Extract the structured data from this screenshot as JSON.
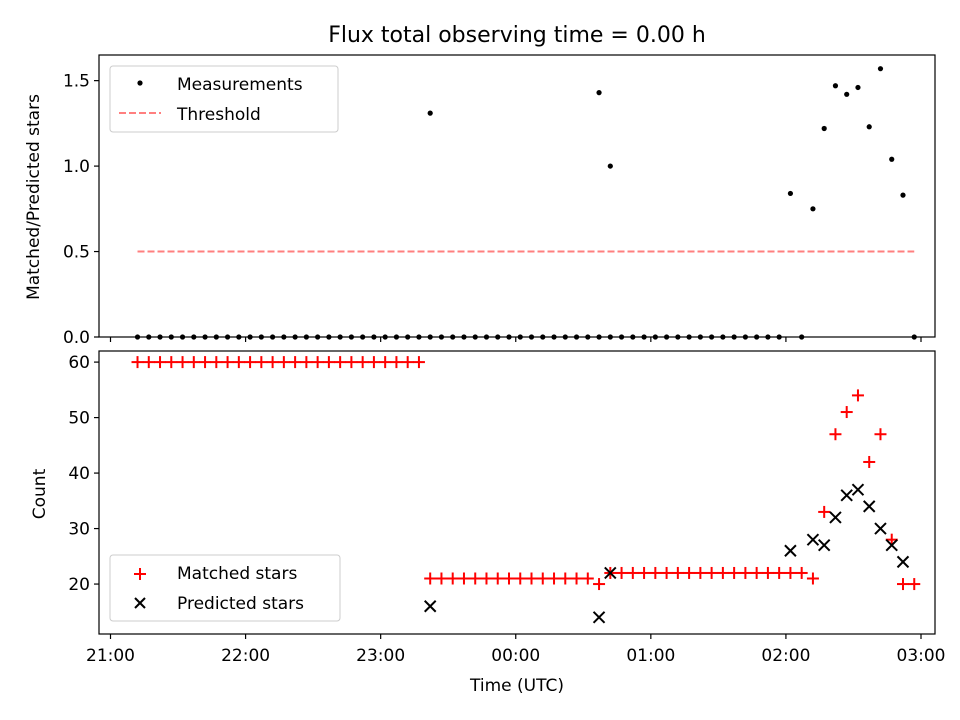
{
  "chart_data": [
    {
      "type": "scatter",
      "title": "Flux total observing time = 0.00 h",
      "xlabel": "",
      "ylabel": "Matched/Predicted stars",
      "x_axis_type": "time",
      "xlim": [
        "21:00",
        "03:00"
      ],
      "ylim": [
        0,
        1.65
      ],
      "yticks": [
        "0.0",
        "0.5",
        "1.0",
        "1.5"
      ],
      "grid": false,
      "legend_placement": "upper-left",
      "series": [
        {
          "name": "Measurements",
          "kind": "points",
          "color": "#000000",
          "x": [
            "21:12",
            "21:17",
            "21:22",
            "21:27",
            "21:32",
            "21:37",
            "21:42",
            "21:47",
            "21:52",
            "21:57",
            "22:02",
            "22:07",
            "22:12",
            "22:17",
            "22:22",
            "22:27",
            "22:32",
            "22:37",
            "22:42",
            "22:47",
            "22:52",
            "22:57",
            "23:02",
            "23:07",
            "23:12",
            "23:17",
            "23:22",
            "23:27",
            "23:32",
            "23:37",
            "23:42",
            "23:47",
            "23:52",
            "23:57",
            "00:02",
            "00:07",
            "00:12",
            "00:17",
            "00:22",
            "00:27",
            "00:32",
            "00:37",
            "00:42",
            "00:47",
            "00:52",
            "00:57",
            "01:02",
            "01:07",
            "01:12",
            "01:17",
            "01:22",
            "01:27",
            "01:32",
            "01:37",
            "01:42",
            "01:47",
            "01:52",
            "01:57",
            "02:07",
            "23:22",
            "00:37",
            "00:42",
            "02:02",
            "02:12",
            "02:17",
            "02:22",
            "02:27",
            "02:32",
            "02:37",
            "02:42",
            "02:47",
            "02:52",
            "02:57"
          ],
          "y": [
            0,
            0,
            0,
            0,
            0,
            0,
            0,
            0,
            0,
            0,
            0,
            0,
            0,
            0,
            0,
            0,
            0,
            0,
            0,
            0,
            0,
            0,
            0,
            0,
            0,
            0,
            0,
            0,
            0,
            0,
            0,
            0,
            0,
            0,
            0,
            0,
            0,
            0,
            0,
            0,
            0,
            0,
            0,
            0,
            0,
            0,
            0,
            0,
            0,
            0,
            0,
            0,
            0,
            0,
            0,
            0,
            0,
            0,
            0,
            1.31,
            1.43,
            1.0,
            0.84,
            0.75,
            1.22,
            1.47,
            1.42,
            1.46,
            1.23,
            1.57,
            1.04,
            0.83,
            0.0
          ]
        },
        {
          "name": "Threshold",
          "kind": "line",
          "style": "dashed",
          "color": "#ff7f7f",
          "x": [
            "21:12",
            "02:57"
          ],
          "y": [
            0.5,
            0.5
          ]
        }
      ]
    },
    {
      "type": "scatter",
      "title": "",
      "xlabel": "Time (UTC)",
      "ylabel": "Count",
      "x_axis_type": "time",
      "xlim": [
        "21:00",
        "03:00"
      ],
      "xticks": [
        "21:00",
        "22:00",
        "23:00",
        "00:00",
        "01:00",
        "02:00",
        "03:00"
      ],
      "ylim": [
        11,
        62
      ],
      "yticks": [
        "20",
        "30",
        "40",
        "50",
        "60"
      ],
      "grid": false,
      "legend_placement": "lower-left",
      "series": [
        {
          "name": "Matched stars",
          "marker": "plus",
          "color": "#ff0000",
          "x": [
            "21:12",
            "21:17",
            "21:22",
            "21:27",
            "21:32",
            "21:37",
            "21:42",
            "21:47",
            "21:52",
            "21:57",
            "22:02",
            "22:07",
            "22:12",
            "22:17",
            "22:22",
            "22:27",
            "22:32",
            "22:37",
            "22:42",
            "22:47",
            "22:52",
            "22:57",
            "23:02",
            "23:07",
            "23:12",
            "23:17",
            "23:22",
            "23:27",
            "23:32",
            "23:37",
            "23:42",
            "23:47",
            "23:52",
            "23:57",
            "00:02",
            "00:07",
            "00:12",
            "00:17",
            "00:22",
            "00:27",
            "00:32",
            "00:37",
            "00:42",
            "00:47",
            "00:52",
            "00:57",
            "01:02",
            "01:07",
            "01:12",
            "01:17",
            "01:22",
            "01:27",
            "01:32",
            "01:37",
            "01:42",
            "01:47",
            "01:52",
            "01:57",
            "02:02",
            "02:07",
            "02:12",
            "02:17",
            "02:22",
            "02:27",
            "02:32",
            "02:37",
            "02:42",
            "02:47",
            "02:52",
            "02:57"
          ],
          "y": [
            60,
            60,
            60,
            60,
            60,
            60,
            60,
            60,
            60,
            60,
            60,
            60,
            60,
            60,
            60,
            60,
            60,
            60,
            60,
            60,
            60,
            60,
            60,
            60,
            60,
            60,
            21,
            21,
            21,
            21,
            21,
            21,
            21,
            21,
            21,
            21,
            21,
            21,
            21,
            21,
            21,
            20,
            22,
            22,
            22,
            22,
            22,
            22,
            22,
            22,
            22,
            22,
            22,
            22,
            22,
            22,
            22,
            22,
            22,
            22,
            21,
            33,
            47,
            51,
            54,
            42,
            47,
            28,
            20,
            20
          ]
        },
        {
          "name": "Predicted stars",
          "marker": "x",
          "color": "#000000",
          "x": [
            "23:22",
            "00:37",
            "00:42",
            "02:02",
            "02:12",
            "02:17",
            "02:22",
            "02:27",
            "02:32",
            "02:37",
            "02:42",
            "02:47",
            "02:52"
          ],
          "y": [
            16,
            14,
            22,
            26,
            28,
            27,
            32,
            36,
            37,
            34,
            30,
            27,
            24
          ]
        }
      ]
    }
  ]
}
